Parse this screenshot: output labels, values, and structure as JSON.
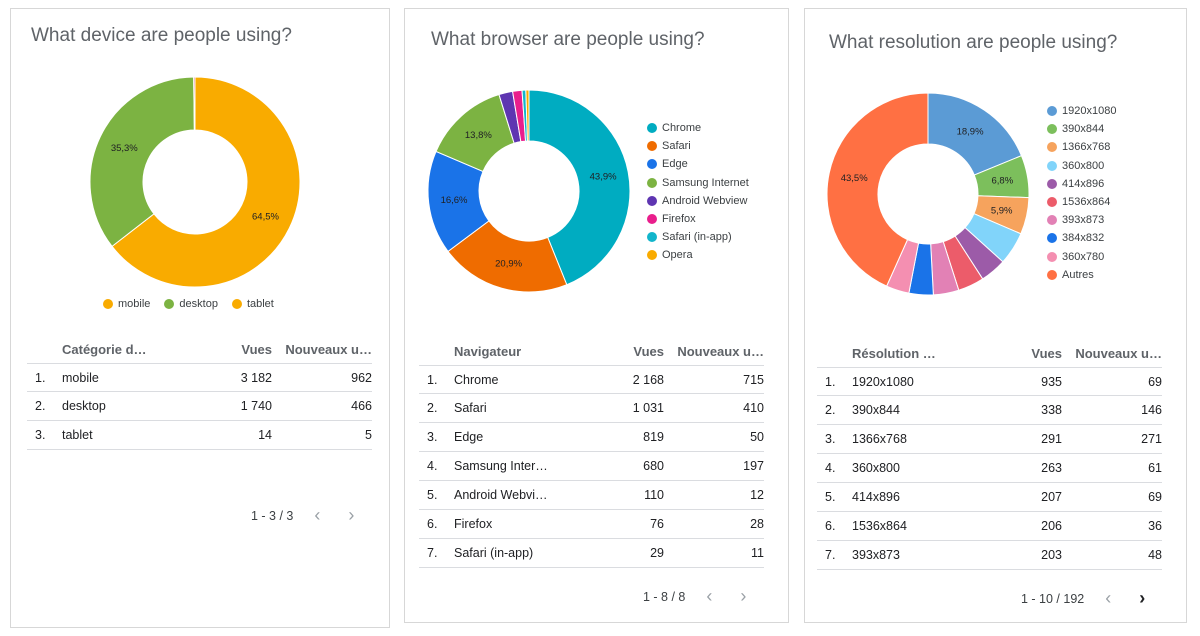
{
  "chart_data": [
    {
      "type": "pie",
      "title": "What device are people using?",
      "legend_position": "bottom",
      "slices": [
        {
          "name": "mobile",
          "value": 64.5,
          "label": "64,5%",
          "color": "#f9ab00"
        },
        {
          "name": "desktop",
          "value": 35.3,
          "label": "35,3%",
          "color": "#7cb342"
        },
        {
          "name": "tablet",
          "value": 0.2,
          "label": "",
          "color": "#d81b60"
        }
      ],
      "table": {
        "headers": [
          "Catégorie d…",
          "Vues",
          "Nouveaux u…"
        ],
        "rows": [
          {
            "idx": "1.",
            "name": "mobile",
            "vues": "3 182",
            "nouveaux": "962"
          },
          {
            "idx": "2.",
            "name": "desktop",
            "vues": "1 740",
            "nouveaux": "466"
          },
          {
            "idx": "3.",
            "name": "tablet",
            "vues": "14",
            "nouveaux": "5"
          }
        ],
        "pagination": "1 - 3 / 3"
      }
    },
    {
      "type": "pie",
      "title": "What browser are people using?",
      "legend_position": "right",
      "slices": [
        {
          "name": "Chrome",
          "value": 43.9,
          "label": "43,9%",
          "color": "#00acc1"
        },
        {
          "name": "Safari",
          "value": 20.9,
          "label": "20,9%",
          "color": "#ef6c00"
        },
        {
          "name": "Edge",
          "value": 16.6,
          "label": "16,6%",
          "color": "#1a73e8"
        },
        {
          "name": "Samsung Internet",
          "value": 13.8,
          "label": "13,8%",
          "color": "#7cb342"
        },
        {
          "name": "Android Webview",
          "value": 2.2,
          "label": "",
          "color": "#5e35b1"
        },
        {
          "name": "Firefox",
          "value": 1.5,
          "label": "",
          "color": "#e91e8c"
        },
        {
          "name": "Safari (in-app)",
          "value": 0.6,
          "label": "",
          "color": "#12b5cb"
        },
        {
          "name": "Opera",
          "value": 0.5,
          "label": "",
          "color": "#f9ab00"
        }
      ],
      "table": {
        "headers": [
          "Navigateur",
          "Vues",
          "Nouveaux u…"
        ],
        "rows": [
          {
            "idx": "1.",
            "name": "Chrome",
            "vues": "2 168",
            "nouveaux": "715"
          },
          {
            "idx": "2.",
            "name": "Safari",
            "vues": "1 031",
            "nouveaux": "410"
          },
          {
            "idx": "3.",
            "name": "Edge",
            "vues": "819",
            "nouveaux": "50"
          },
          {
            "idx": "4.",
            "name": "Samsung Inter…",
            "vues": "680",
            "nouveaux": "197"
          },
          {
            "idx": "5.",
            "name": "Android Webvi…",
            "vues": "110",
            "nouveaux": "12"
          },
          {
            "idx": "6.",
            "name": "Firefox",
            "vues": "76",
            "nouveaux": "28"
          },
          {
            "idx": "7.",
            "name": "Safari (in-app)",
            "vues": "29",
            "nouveaux": "11"
          }
        ],
        "pagination": "1 - 8 / 8"
      }
    },
    {
      "type": "pie",
      "title": "What resolution are people using?",
      "legend_position": "right",
      "slices": [
        {
          "name": "1920x1080",
          "value": 18.9,
          "label": "18,9%",
          "color": "#5b9bd5"
        },
        {
          "name": "390x844",
          "value": 6.8,
          "label": "6,8%",
          "color": "#7cbf5c"
        },
        {
          "name": "1366x768",
          "value": 5.9,
          "label": "5,9%",
          "color": "#f6a35d"
        },
        {
          "name": "360x800",
          "value": 5.3,
          "label": "",
          "color": "#81d4fa"
        },
        {
          "name": "414x896",
          "value": 4.2,
          "label": "",
          "color": "#9c5ba8"
        },
        {
          "name": "1536x864",
          "value": 4.2,
          "label": "",
          "color": "#ec5c6a"
        },
        {
          "name": "393x873",
          "value": 4.1,
          "label": "",
          "color": "#e281b5"
        },
        {
          "name": "384x832",
          "value": 3.9,
          "label": "",
          "color": "#1a73e8"
        },
        {
          "name": "360x780",
          "value": 3.7,
          "label": "",
          "color": "#f48fb1"
        },
        {
          "name": "Autres",
          "value": 43.5,
          "label": "43,5%",
          "color": "#ff7043"
        }
      ],
      "table": {
        "headers": [
          "Résolution …",
          "Vues",
          "Nouveaux u…"
        ],
        "rows": [
          {
            "idx": "1.",
            "name": "1920x1080",
            "vues": "935",
            "nouveaux": "69"
          },
          {
            "idx": "2.",
            "name": "390x844",
            "vues": "338",
            "nouveaux": "146"
          },
          {
            "idx": "3.",
            "name": "1366x768",
            "vues": "291",
            "nouveaux": "271"
          },
          {
            "idx": "4.",
            "name": "360x800",
            "vues": "263",
            "nouveaux": "61"
          },
          {
            "idx": "5.",
            "name": "414x896",
            "vues": "207",
            "nouveaux": "69"
          },
          {
            "idx": "6.",
            "name": "1536x864",
            "vues": "206",
            "nouveaux": "36"
          },
          {
            "idx": "7.",
            "name": "393x873",
            "vues": "203",
            "nouveaux": "48"
          }
        ],
        "pagination": "1 - 10 / 192"
      }
    }
  ]
}
